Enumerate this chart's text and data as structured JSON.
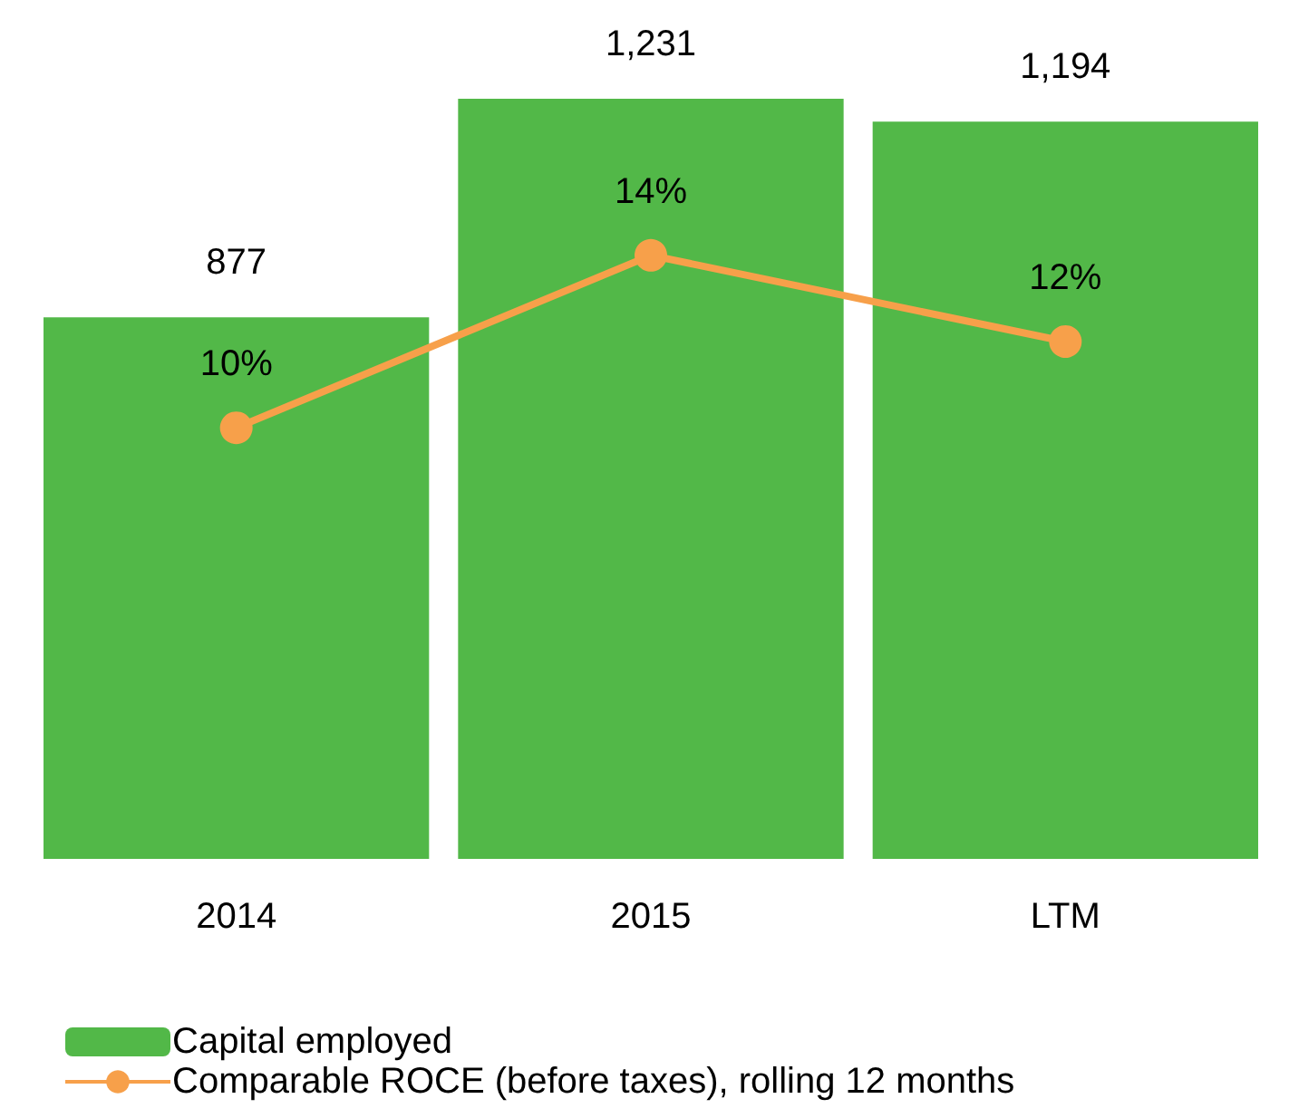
{
  "chart_data": {
    "type": "bar",
    "categories": [
      "2014",
      "2015",
      "LTM"
    ],
    "series": [
      {
        "name": "Capital employed",
        "color": "#52b848",
        "values": [
          877,
          1231,
          1194
        ],
        "value_labels": [
          "877",
          "1,231",
          "1,194"
        ]
      },
      {
        "name": "Comparable ROCE (before taxes), rolling 12 months",
        "type": "line",
        "axis": "y2",
        "color": "#f7a04a",
        "values": [
          10,
          14,
          12
        ],
        "value_labels": [
          "10%",
          "14%",
          "12%"
        ]
      }
    ],
    "marker": "circle",
    "line_style": "solid",
    "legend": "bottom left"
  }
}
